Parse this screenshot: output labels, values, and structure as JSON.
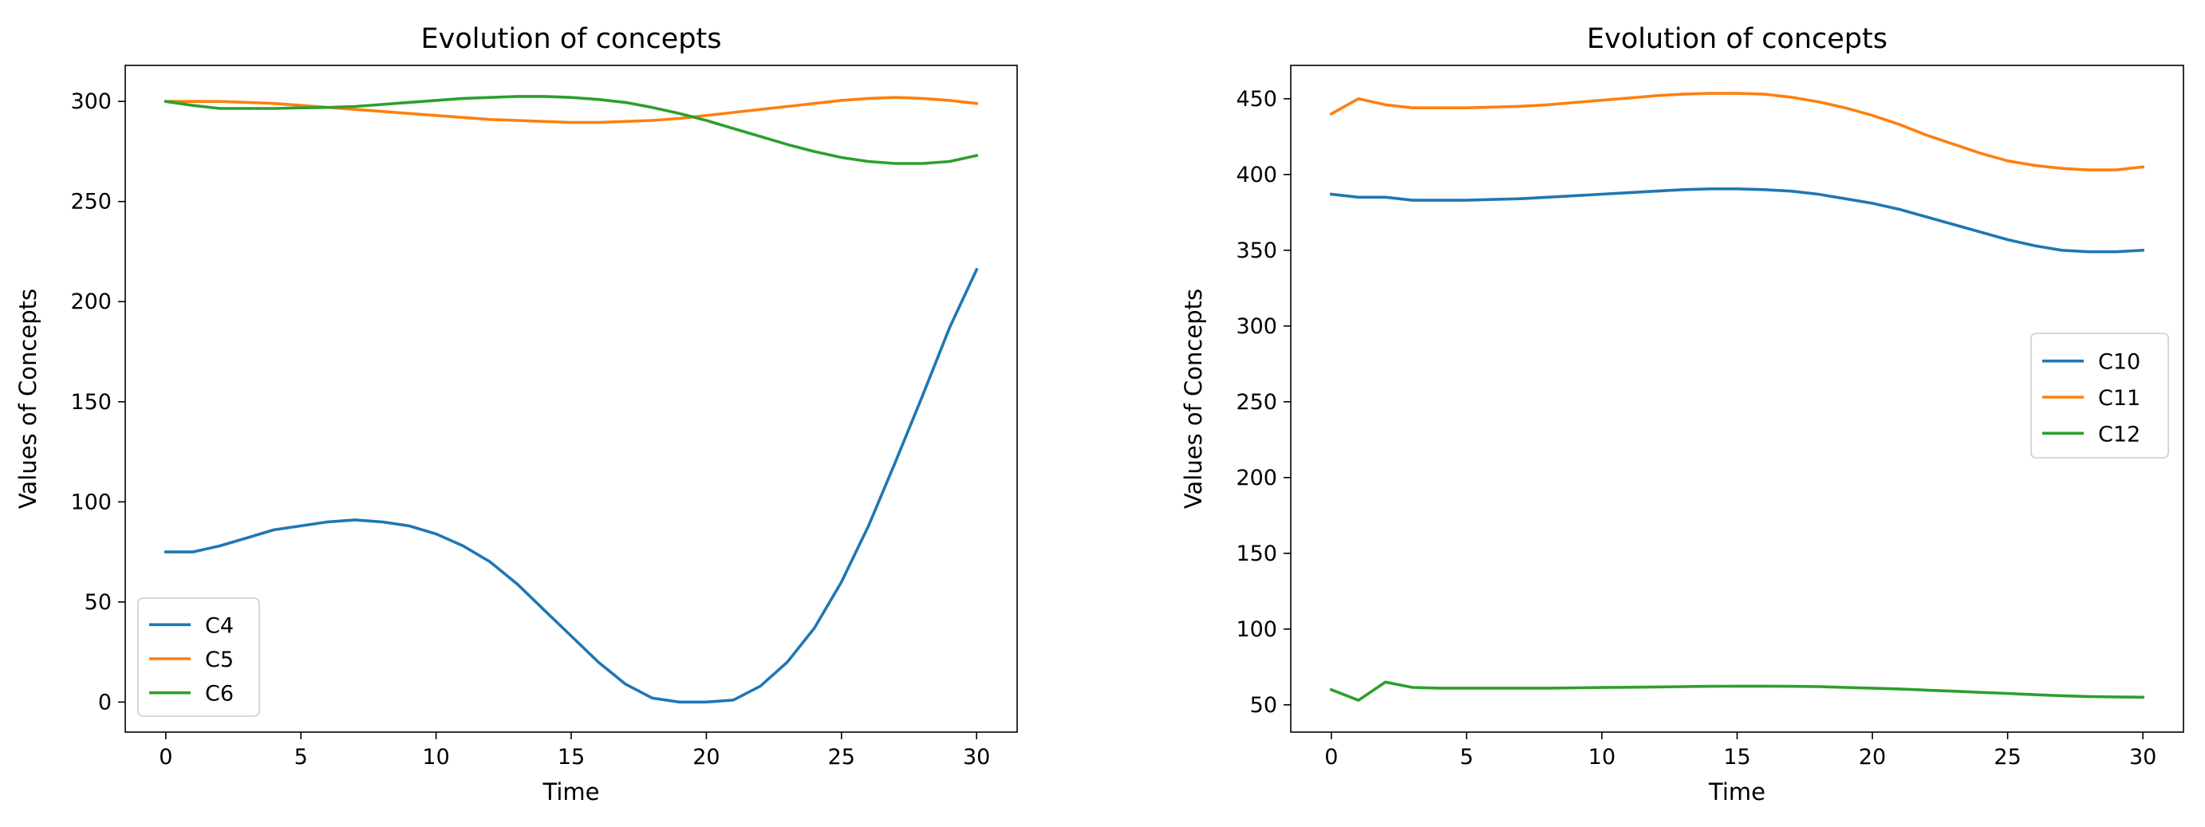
{
  "chart_data": [
    {
      "type": "line",
      "title": "Evolution of concepts",
      "xlabel": "Time",
      "ylabel": "Values of Concepts",
      "xlim": [
        -1.5,
        31.5
      ],
      "ylim": [
        -15,
        318
      ],
      "xticks": [
        0,
        5,
        10,
        15,
        20,
        25,
        30
      ],
      "yticks": [
        0,
        50,
        100,
        150,
        200,
        250,
        300
      ],
      "grid": false,
      "legend": "lower-left",
      "x": [
        0,
        1,
        2,
        3,
        4,
        5,
        6,
        7,
        8,
        9,
        10,
        11,
        12,
        13,
        14,
        15,
        16,
        17,
        18,
        19,
        20,
        21,
        22,
        23,
        24,
        25,
        26,
        27,
        28,
        29,
        30
      ],
      "series": [
        {
          "name": "C4",
          "color": "#1f77b4",
          "values": [
            75,
            75,
            78,
            82,
            86,
            88,
            90,
            91,
            90,
            88,
            84,
            78,
            70,
            59,
            46,
            33,
            20,
            9,
            2,
            0,
            0,
            1,
            8,
            20,
            37,
            60,
            88,
            120,
            153,
            187,
            216
          ]
        },
        {
          "name": "C5",
          "color": "#ff7f0e",
          "values": [
            300,
            300,
            300,
            299.5,
            299,
            298,
            297,
            296,
            295,
            294,
            293,
            292,
            291,
            290.5,
            290,
            289.5,
            289.5,
            290,
            290.5,
            291.5,
            293,
            294.5,
            296,
            297.5,
            299,
            300.5,
            301.5,
            302,
            301.5,
            300.5,
            299
          ]
        },
        {
          "name": "C6",
          "color": "#2ca02c",
          "values": [
            300,
            298,
            296.5,
            296.5,
            296.5,
            296.8,
            297,
            297.5,
            298.5,
            299.5,
            300.5,
            301.5,
            302,
            302.5,
            302.5,
            302,
            301,
            299.5,
            297,
            294,
            290.5,
            286.5,
            282.5,
            278.5,
            275,
            272,
            270,
            269,
            269,
            270,
            273
          ]
        }
      ]
    },
    {
      "type": "line",
      "title": "Evolution of concepts",
      "xlabel": "Time",
      "ylabel": "Values of Concepts",
      "xlim": [
        -1.5,
        31.5
      ],
      "ylim": [
        32,
        472
      ],
      "xticks": [
        0,
        5,
        10,
        15,
        20,
        25,
        30
      ],
      "yticks": [
        50,
        100,
        150,
        200,
        250,
        300,
        350,
        400,
        450
      ],
      "grid": false,
      "legend": "center-right",
      "x": [
        0,
        1,
        2,
        3,
        4,
        5,
        6,
        7,
        8,
        9,
        10,
        11,
        12,
        13,
        14,
        15,
        16,
        17,
        18,
        19,
        20,
        21,
        22,
        23,
        24,
        25,
        26,
        27,
        28,
        29,
        30
      ],
      "series": [
        {
          "name": "C10",
          "color": "#1f77b4",
          "values": [
            387,
            385,
            385,
            383,
            383,
            383,
            383.5,
            384,
            385,
            386,
            387,
            388,
            389,
            390,
            390.5,
            390.5,
            390,
            389,
            387,
            384,
            381,
            377,
            372,
            367,
            362,
            357,
            353,
            350,
            349,
            349,
            350
          ]
        },
        {
          "name": "C11",
          "color": "#ff7f0e",
          "values": [
            440,
            450,
            446,
            444,
            444,
            444,
            444.5,
            445,
            446,
            447.5,
            449,
            450.5,
            452,
            453,
            453.5,
            453.5,
            453,
            451,
            448,
            444,
            439,
            433,
            426,
            420,
            414,
            409,
            406,
            404,
            403,
            403,
            405
          ]
        },
        {
          "name": "C12",
          "color": "#2ca02c",
          "values": [
            60,
            53,
            65,
            61.5,
            61,
            61,
            61,
            61,
            61,
            61.2,
            61.4,
            61.6,
            61.8,
            62,
            62.2,
            62.3,
            62.3,
            62.2,
            62,
            61.5,
            61,
            60.5,
            59.7,
            59,
            58.2,
            57.5,
            56.7,
            56,
            55.5,
            55.2,
            55
          ]
        }
      ]
    }
  ]
}
